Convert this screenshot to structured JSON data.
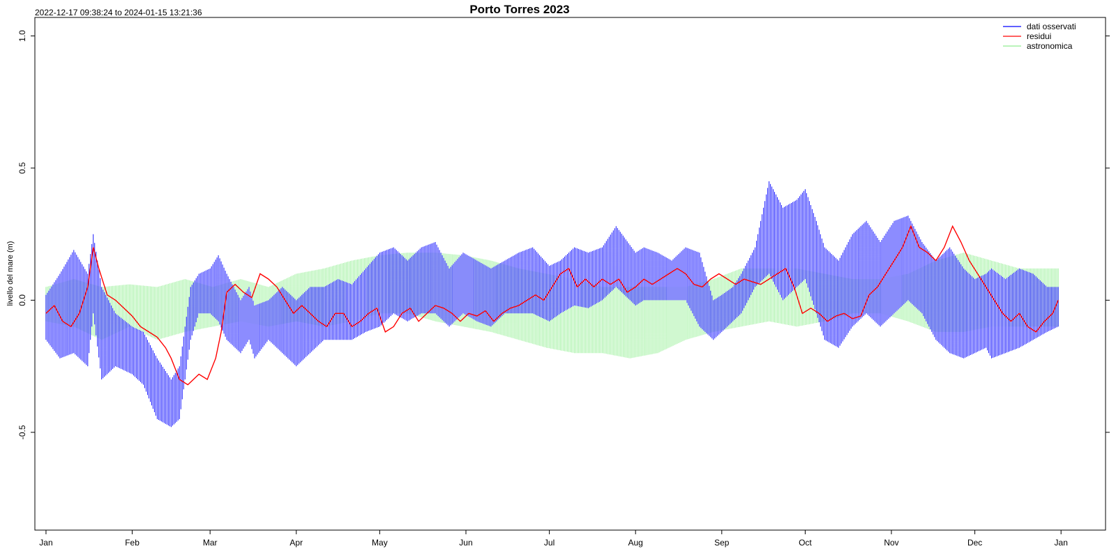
{
  "chart_data": {
    "type": "line",
    "title": "Porto Torres 2023",
    "subtitle": "2022-12-17 09:38:24 to 2024-01-15 13:21:36",
    "xlabel": "",
    "ylabel": "livello del mare (m)",
    "x_ticks": [
      "Jan",
      "Feb",
      "Mar",
      "Apr",
      "May",
      "Jun",
      "Jul",
      "Aug",
      "Sep",
      "Oct",
      "Nov",
      "Dec",
      "Jan"
    ],
    "xlim": [
      -4,
      381
    ],
    "ylim": [
      -0.87,
      1.07
    ],
    "y_ticks": [
      "-0.5",
      "0.0",
      "0.5",
      "1.0"
    ],
    "grid": false,
    "legend_position": "top-right",
    "series": [
      {
        "name": "dati osservati",
        "color": "#0000ff",
        "style": "envelope",
        "x": [
          0,
          5,
          10,
          15,
          17,
          20,
          25,
          31,
          35,
          40,
          45,
          48,
          52,
          55,
          59,
          62,
          65,
          70,
          73,
          75,
          80,
          85,
          90,
          95,
          100,
          105,
          110,
          115,
          120,
          125,
          130,
          135,
          140,
          145,
          150,
          155,
          160,
          165,
          170,
          175,
          181,
          185,
          190,
          195,
          200,
          205,
          212,
          215,
          220,
          225,
          230,
          235,
          240,
          243,
          247,
          250,
          255,
          260,
          265,
          270,
          273,
          277,
          280,
          285,
          290,
          295,
          300,
          305,
          310,
          315,
          320,
          325,
          330,
          334,
          338,
          340,
          345,
          350,
          355,
          360,
          364
        ],
        "high": [
          0.02,
          0.1,
          0.19,
          0.1,
          0.25,
          0.05,
          -0.05,
          -0.1,
          -0.12,
          -0.22,
          -0.3,
          -0.25,
          0.05,
          0.1,
          0.12,
          0.17,
          0.1,
          0.0,
          0.05,
          -0.02,
          0.0,
          0.05,
          0.0,
          0.05,
          0.05,
          0.08,
          0.06,
          0.12,
          0.18,
          0.2,
          0.15,
          0.2,
          0.22,
          0.12,
          0.18,
          0.15,
          0.12,
          0.15,
          0.18,
          0.2,
          0.13,
          0.15,
          0.2,
          0.18,
          0.2,
          0.28,
          0.18,
          0.2,
          0.18,
          0.15,
          0.2,
          0.18,
          0.0,
          0.02,
          0.05,
          0.1,
          0.2,
          0.45,
          0.35,
          0.38,
          0.42,
          0.3,
          0.2,
          0.15,
          0.25,
          0.3,
          0.22,
          0.3,
          0.32,
          0.22,
          0.15,
          0.2,
          0.12,
          0.08,
          0.1,
          0.12,
          0.08,
          0.12,
          0.1,
          0.05,
          0.05
        ],
        "low": [
          -0.15,
          -0.22,
          -0.2,
          -0.25,
          -0.05,
          -0.3,
          -0.25,
          -0.28,
          -0.32,
          -0.45,
          -0.48,
          -0.45,
          -0.15,
          -0.05,
          -0.05,
          -0.08,
          -0.15,
          -0.2,
          -0.15,
          -0.22,
          -0.15,
          -0.2,
          -0.25,
          -0.2,
          -0.15,
          -0.15,
          -0.15,
          -0.12,
          -0.1,
          -0.05,
          -0.08,
          -0.05,
          -0.05,
          -0.1,
          -0.05,
          -0.08,
          -0.1,
          -0.05,
          -0.05,
          -0.05,
          -0.08,
          -0.05,
          -0.02,
          -0.03,
          0.0,
          0.05,
          -0.02,
          0.0,
          0.0,
          0.0,
          0.0,
          -0.1,
          -0.15,
          -0.12,
          -0.08,
          -0.05,
          0.05,
          0.1,
          0.0,
          0.05,
          0.08,
          -0.05,
          -0.15,
          -0.18,
          -0.1,
          -0.05,
          -0.1,
          -0.05,
          0.0,
          -0.05,
          -0.15,
          -0.2,
          -0.22,
          -0.2,
          -0.18,
          -0.22,
          -0.2,
          -0.18,
          -0.15,
          -0.12,
          -0.1
        ]
      },
      {
        "name": "residui",
        "color": "#ff0000",
        "style": "line",
        "x": [
          0,
          3,
          6,
          9,
          12,
          15,
          17,
          19,
          22,
          25,
          28,
          31,
          34,
          37,
          40,
          43,
          45,
          48,
          51,
          55,
          58,
          61,
          63,
          65,
          68,
          71,
          74,
          77,
          80,
          83,
          86,
          89,
          92,
          95,
          98,
          101,
          104,
          107,
          110,
          113,
          116,
          119,
          122,
          125,
          128,
          131,
          134,
          137,
          140,
          143,
          146,
          149,
          152,
          155,
          158,
          161,
          164,
          167,
          170,
          173,
          176,
          179,
          182,
          185,
          188,
          191,
          194,
          197,
          200,
          203,
          206,
          209,
          212,
          215,
          218,
          221,
          224,
          227,
          230,
          233,
          236,
          239,
          242,
          245,
          248,
          251,
          254,
          257,
          260,
          263,
          266,
          269,
          272,
          275,
          278,
          281,
          284,
          287,
          290,
          293,
          296,
          299,
          302,
          305,
          308,
          311,
          314,
          317,
          320,
          323,
          326,
          329,
          332,
          335,
          338,
          341,
          344,
          347,
          350,
          353,
          356,
          359,
          362,
          364
        ],
        "values": [
          -0.05,
          -0.02,
          -0.08,
          -0.1,
          -0.05,
          0.05,
          0.2,
          0.12,
          0.02,
          0.0,
          -0.03,
          -0.06,
          -0.1,
          -0.12,
          -0.14,
          -0.18,
          -0.22,
          -0.3,
          -0.32,
          -0.28,
          -0.3,
          -0.22,
          -0.12,
          0.03,
          0.06,
          0.03,
          0.01,
          0.1,
          0.08,
          0.05,
          0.0,
          -0.05,
          -0.02,
          -0.05,
          -0.08,
          -0.1,
          -0.05,
          -0.05,
          -0.1,
          -0.08,
          -0.05,
          -0.03,
          -0.12,
          -0.1,
          -0.05,
          -0.03,
          -0.08,
          -0.05,
          -0.02,
          -0.03,
          -0.05,
          -0.08,
          -0.05,
          -0.06,
          -0.04,
          -0.08,
          -0.05,
          -0.03,
          -0.02,
          0.0,
          0.02,
          0.0,
          0.05,
          0.1,
          0.12,
          0.05,
          0.08,
          0.05,
          0.08,
          0.06,
          0.08,
          0.03,
          0.05,
          0.08,
          0.06,
          0.08,
          0.1,
          0.12,
          0.1,
          0.06,
          0.05,
          0.08,
          0.1,
          0.08,
          0.06,
          0.08,
          0.07,
          0.06,
          0.08,
          0.1,
          0.12,
          0.05,
          -0.05,
          -0.03,
          -0.05,
          -0.08,
          -0.06,
          -0.05,
          -0.07,
          -0.06,
          0.02,
          0.05,
          0.1,
          0.15,
          0.2,
          0.28,
          0.2,
          0.18,
          0.15,
          0.2,
          0.28,
          0.22,
          0.15,
          0.1,
          0.05,
          0.0,
          -0.05,
          -0.08,
          -0.05,
          -0.1,
          -0.12,
          -0.08,
          -0.05,
          0.0
        ]
      },
      {
        "name": "astronomica",
        "color": "#90ee90",
        "style": "envelope",
        "x": [
          0,
          10,
          20,
          30,
          40,
          50,
          60,
          70,
          80,
          90,
          100,
          110,
          120,
          130,
          140,
          150,
          160,
          170,
          180,
          190,
          200,
          210,
          220,
          230,
          240,
          250,
          260,
          270,
          280,
          290,
          300,
          310,
          320,
          330,
          340,
          350,
          364
        ],
        "high": [
          0.05,
          0.08,
          0.05,
          0.06,
          0.05,
          0.08,
          0.05,
          0.08,
          0.05,
          0.1,
          0.12,
          0.15,
          0.17,
          0.18,
          0.18,
          0.17,
          0.15,
          0.12,
          0.1,
          0.08,
          0.05,
          0.05,
          0.05,
          0.05,
          0.08,
          0.12,
          0.12,
          0.12,
          0.1,
          0.08,
          0.08,
          0.1,
          0.15,
          0.18,
          0.15,
          0.12,
          0.12
        ],
        "low": [
          -0.08,
          -0.1,
          -0.15,
          -0.1,
          -0.15,
          -0.12,
          -0.1,
          -0.08,
          -0.1,
          -0.08,
          -0.1,
          -0.08,
          -0.05,
          -0.05,
          -0.08,
          -0.1,
          -0.12,
          -0.15,
          -0.18,
          -0.2,
          -0.2,
          -0.22,
          -0.2,
          -0.15,
          -0.12,
          -0.1,
          -0.08,
          -0.1,
          -0.08,
          -0.05,
          -0.05,
          -0.08,
          -0.12,
          -0.12,
          -0.1,
          -0.1,
          -0.1
        ]
      }
    ]
  }
}
